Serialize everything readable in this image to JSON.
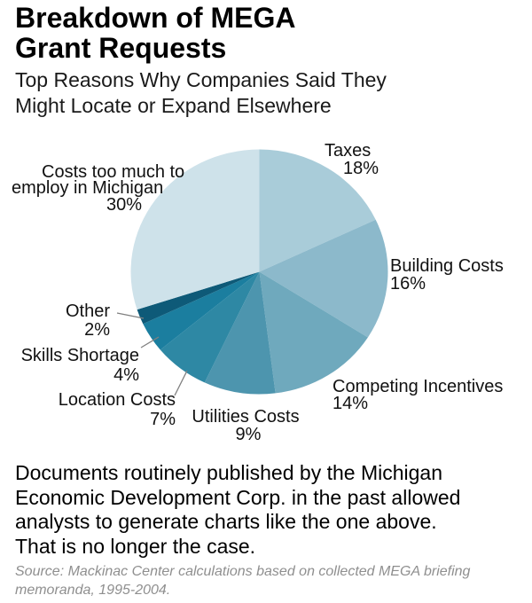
{
  "header": {
    "title": "Breakdown of MEGA\nGrant Requests",
    "subtitle": "Top Reasons Why Companies Said They\nMight Locate or Expand Elsewhere"
  },
  "chart_data": {
    "type": "pie",
    "title": "Breakdown of MEGA Grant Requests",
    "subtitle": "Top Reasons Why Companies Said They Might Locate or Expand Elsewhere",
    "start_angle_deg": 0,
    "direction": "clockwise",
    "slices": [
      {
        "label": "Taxes",
        "value_pct": 18,
        "color": "#a9ccd9"
      },
      {
        "label": "Building Costs",
        "value_pct": 16,
        "color": "#8cb9cb"
      },
      {
        "label": "Competing Incentives",
        "value_pct": 14,
        "color": "#6fa9bd"
      },
      {
        "label": "Utilities Costs",
        "value_pct": 9,
        "color": "#4d95ae"
      },
      {
        "label": "Location Costs",
        "value_pct": 7,
        "color": "#2e88a4"
      },
      {
        "label": "Skills Shortage",
        "value_pct": 4,
        "color": "#1b7e9f"
      },
      {
        "label": "Other",
        "value_pct": 2,
        "color": "#0e5a78"
      },
      {
        "label": "Costs too much to employ in Michigan",
        "value_pct": 30,
        "color": "#cee2ea"
      }
    ]
  },
  "pie_labels": {
    "taxes": [
      "Taxes",
      "18%"
    ],
    "building": [
      "Building Costs",
      "16%"
    ],
    "competing": [
      "Competing Incentives",
      "14%"
    ],
    "utilities": [
      "Utilities Costs",
      "9%"
    ],
    "location": [
      "Location Costs",
      "7%"
    ],
    "skills": [
      "Skills Shortage",
      "4%"
    ],
    "other": [
      "Other",
      "2%"
    ],
    "costs": [
      "Costs too much to",
      "employ in Michigan",
      "30%"
    ]
  },
  "footer": {
    "body": "Documents routinely published by the Michigan\nEconomic Development Corp. in the past allowed\nanalysts to generate charts like the one above.\nThat is no longer the case.",
    "source": "Source: Mackinac Center calculations based on collected MEGA briefing\nmemoranda, 1995-2004."
  }
}
